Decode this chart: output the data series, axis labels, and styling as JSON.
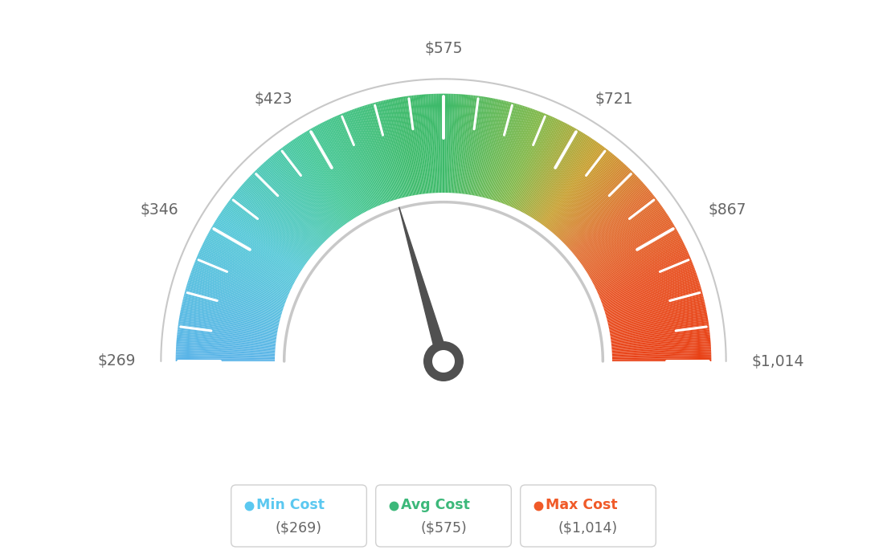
{
  "min_val": 269,
  "max_val": 1014,
  "avg_val": 575,
  "tick_labels": [
    "$269",
    "$346",
    "$423",
    "$575",
    "$721",
    "$867",
    "$1,014"
  ],
  "tick_angles_deg": [
    180,
    150,
    120,
    90,
    60,
    30,
    0
  ],
  "min_cost_label": "Min Cost",
  "avg_cost_label": "Avg Cost",
  "max_cost_label": "Max Cost",
  "min_cost_val": "($269)",
  "avg_cost_val": "($575)",
  "max_cost_val": "($1,014)",
  "dot_color_min": "#5bc8f0",
  "dot_color_avg": "#3cb87a",
  "dot_color_max": "#f05a28",
  "label_color_min": "#5bc8f0",
  "label_color_avg": "#3cb87a",
  "label_color_max": "#f05a28",
  "bg_color": "#ffffff",
  "needle_color": "#505050",
  "label_text_color": "#666666",
  "colors_list": [
    [
      0.0,
      "#5ab4e8"
    ],
    [
      0.18,
      "#55c8d8"
    ],
    [
      0.32,
      "#45c898"
    ],
    [
      0.45,
      "#3dba6a"
    ],
    [
      0.5,
      "#3dba6a"
    ],
    [
      0.62,
      "#82b848"
    ],
    [
      0.7,
      "#c8a030"
    ],
    [
      0.78,
      "#e07030"
    ],
    [
      0.88,
      "#e85020"
    ],
    [
      1.0,
      "#e84015"
    ]
  ]
}
